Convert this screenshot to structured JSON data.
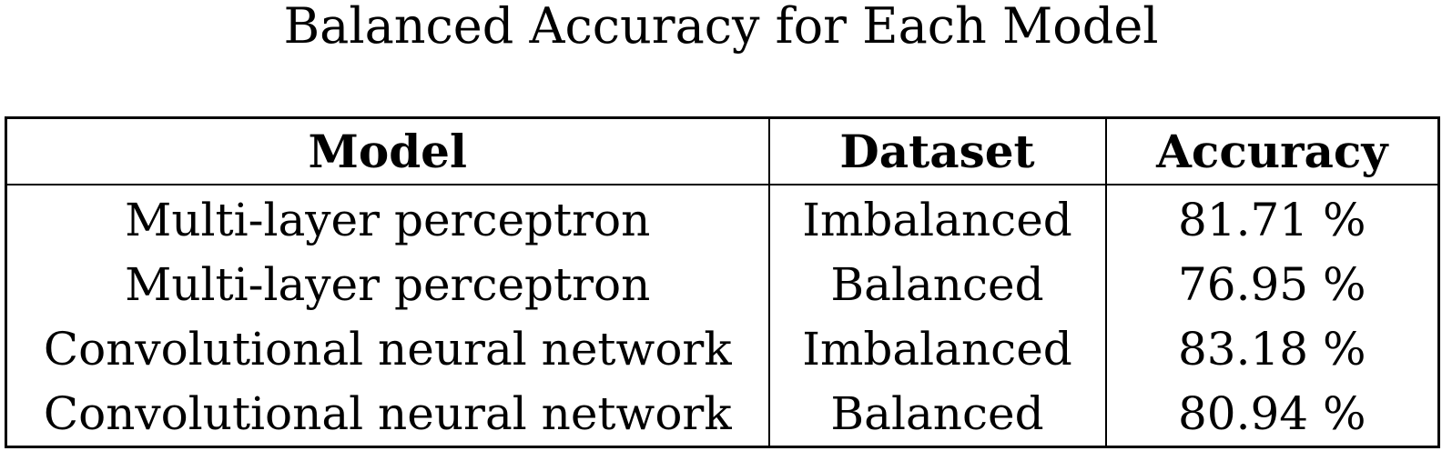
{
  "title": "Balanced Accuracy for Each Model",
  "table": {
    "headers": [
      "Model",
      "Dataset",
      "Accuracy"
    ],
    "rows": [
      [
        "Multi-layer perceptron",
        "Imbalanced",
        "81.71 %"
      ],
      [
        "Multi-layer perceptron",
        "Balanced",
        "76.95 %"
      ],
      [
        "Convolutional neural network",
        "Imbalanced",
        "83.18 %"
      ],
      [
        "Convolutional neural network",
        "Balanced",
        "80.94 %"
      ]
    ]
  },
  "chart_data": {
    "type": "table",
    "title": "Balanced Accuracy for Each Model",
    "columns": [
      "Model",
      "Dataset",
      "Accuracy"
    ],
    "rows": [
      {
        "Model": "Multi-layer perceptron",
        "Dataset": "Imbalanced",
        "Accuracy": 81.71
      },
      {
        "Model": "Multi-layer perceptron",
        "Dataset": "Balanced",
        "Accuracy": 76.95
      },
      {
        "Model": "Convolutional neural network",
        "Dataset": "Imbalanced",
        "Accuracy": 83.18
      },
      {
        "Model": "Convolutional neural network",
        "Dataset": "Balanced",
        "Accuracy": 80.94
      }
    ]
  }
}
